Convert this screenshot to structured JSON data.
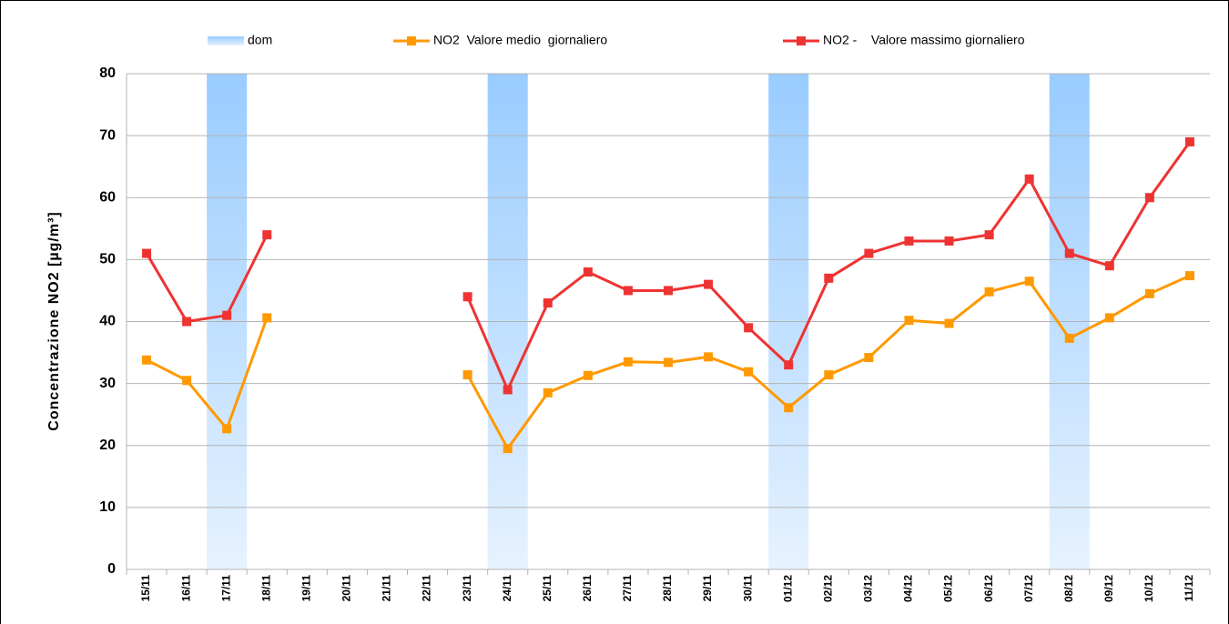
{
  "chart_data": {
    "type": "combo",
    "y_label": "Concentrazione NO2 [µg/m³]",
    "categories": [
      "15/11",
      "16/11",
      "17/11",
      "18/11",
      "19/11",
      "20/11",
      "21/11",
      "22/11",
      "23/11",
      "24/11",
      "25/11",
      "26/11",
      "27/11",
      "28/11",
      "29/11",
      "30/11",
      "01/12",
      "02/12",
      "03/12",
      "04/12",
      "05/12",
      "06/12",
      "07/12",
      "08/12",
      "09/12",
      "10/12",
      "11/12"
    ],
    "series": [
      {
        "name": "dom",
        "type": "bar",
        "color": "#99ccff",
        "values": [
          null,
          null,
          80,
          null,
          null,
          null,
          null,
          null,
          null,
          80,
          null,
          null,
          null,
          null,
          null,
          null,
          80,
          null,
          null,
          null,
          null,
          null,
          null,
          80,
          null,
          null,
          null
        ]
      },
      {
        "name": "NO2  Valore medio  giornaliero",
        "type": "line",
        "color": "#ff9900",
        "values": [
          33.8,
          30.5,
          22.7,
          40.6,
          null,
          null,
          null,
          null,
          31.4,
          19.5,
          28.5,
          31.3,
          33.5,
          33.4,
          34.3,
          31.9,
          26.1,
          31.4,
          34.2,
          40.2,
          39.7,
          44.8,
          46.5,
          37.3,
          40.6,
          44.5,
          47.4
        ]
      },
      {
        "name": "NO2 -    Valore massimo giornaliero",
        "type": "line",
        "color": "#ee3333",
        "values": [
          51,
          40,
          41,
          54,
          null,
          null,
          null,
          null,
          44,
          29,
          43,
          48,
          45,
          45,
          46,
          39,
          33,
          47,
          51,
          53,
          53,
          54,
          63,
          51,
          49,
          60,
          69
        ]
      }
    ],
    "ylim": [
      0,
      80
    ],
    "yticks": [
      0,
      10,
      20,
      30,
      40,
      50,
      60,
      70,
      80
    ],
    "grid": true,
    "legend": "top"
  }
}
